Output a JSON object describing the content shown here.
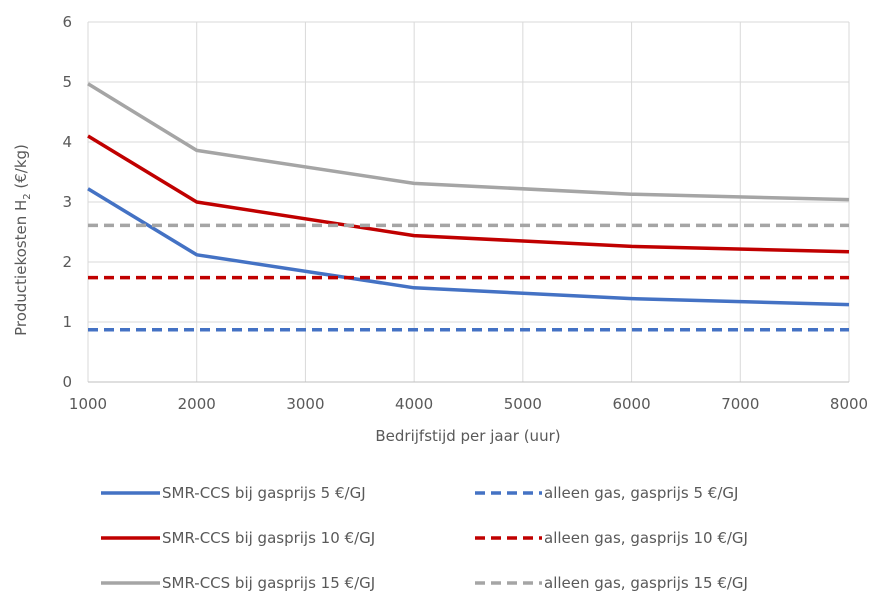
{
  "chart_data": {
    "type": "line",
    "title": "",
    "xlabel": "Bedrijfstijd per jaar (uur)",
    "ylabel": {
      "prefix": "Productiekosten H",
      "subscript": "2",
      "suffix": " (€/kg)"
    },
    "xlim": [
      1000,
      8000
    ],
    "ylim": [
      0,
      6
    ],
    "xticks": [
      1000,
      2000,
      3000,
      4000,
      5000,
      6000,
      7000,
      8000
    ],
    "yticks": [
      0,
      1,
      2,
      3,
      4,
      5,
      6
    ],
    "grid": true,
    "legend_position": "bottom",
    "series": [
      {
        "name": "SMR-CCS bij gasprijs 5 €/GJ",
        "color": "#4472c4",
        "dash": false,
        "x": [
          1000,
          2000,
          4000,
          6000,
          8000
        ],
        "y": [
          3.22,
          2.12,
          1.57,
          1.39,
          1.29
        ]
      },
      {
        "name": "alleen gas, gasprijs 5 €/GJ",
        "color": "#4472c4",
        "dash": true,
        "x": [
          1000,
          8000
        ],
        "y": [
          0.87,
          0.87
        ]
      },
      {
        "name": "SMR-CCS bij gasprijs 10 €/GJ",
        "color": "#c00000",
        "dash": false,
        "x": [
          1000,
          2000,
          4000,
          6000,
          8000
        ],
        "y": [
          4.1,
          3.0,
          2.44,
          2.26,
          2.17
        ]
      },
      {
        "name": "alleen gas, gasprijs 10 €/GJ",
        "color": "#c00000",
        "dash": true,
        "x": [
          1000,
          8000
        ],
        "y": [
          1.74,
          1.74
        ]
      },
      {
        "name": "SMR-CCS bij gasprijs 15 €/GJ",
        "color": "#a5a5a5",
        "dash": false,
        "x": [
          1000,
          2000,
          4000,
          6000,
          8000
        ],
        "y": [
          4.97,
          3.86,
          3.31,
          3.13,
          3.04
        ]
      },
      {
        "name": "alleen gas, gasprijs 15 €/GJ",
        "color": "#a5a5a5",
        "dash": true,
        "x": [
          1000,
          8000
        ],
        "y": [
          2.61,
          2.61
        ]
      }
    ]
  }
}
